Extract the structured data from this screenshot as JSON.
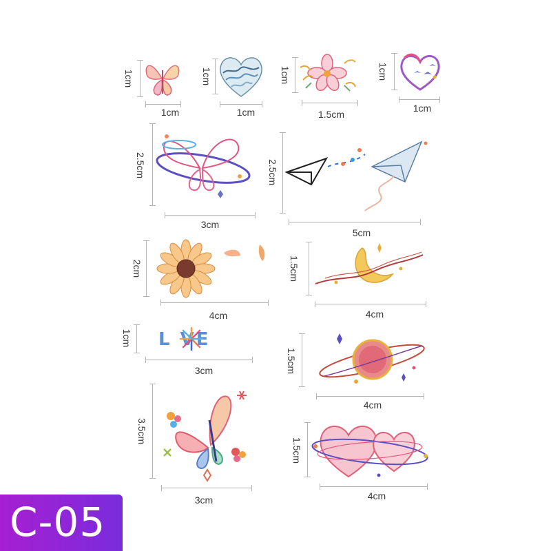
{
  "product_code": "C-05",
  "stickers": [
    {
      "name": "butterfly-small",
      "width": "1cm",
      "height": "1cm"
    },
    {
      "name": "wave-heart",
      "width": "1cm",
      "height": "1cm"
    },
    {
      "name": "flower",
      "width": "1.5cm",
      "height": "1cm"
    },
    {
      "name": "bird-heart",
      "width": "1cm",
      "height": "1cm"
    },
    {
      "name": "butterfly-planet",
      "width": "3cm",
      "height": "2.5cm"
    },
    {
      "name": "paper-planes",
      "width": "5cm",
      "height": "2.5cm"
    },
    {
      "name": "sunflower",
      "width": "4cm",
      "height": "2cm"
    },
    {
      "name": "moon",
      "width": "4cm",
      "height": "1.5cm"
    },
    {
      "name": "love",
      "width": "3cm",
      "height": "1cm",
      "text": "L VE"
    },
    {
      "name": "planet",
      "width": "4cm",
      "height": "1.5cm"
    },
    {
      "name": "butterfly-large",
      "width": "3cm",
      "height": "3.5cm"
    },
    {
      "name": "double-hearts",
      "width": "4cm",
      "height": "1.5cm"
    }
  ]
}
